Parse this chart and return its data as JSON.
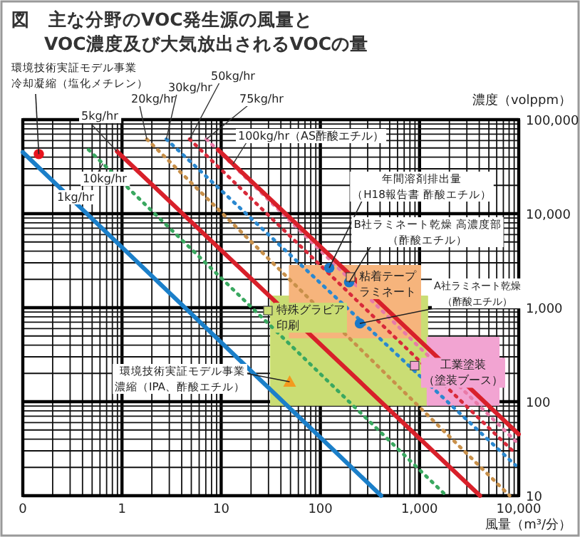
{
  "chart_data": {
    "type": "line",
    "title": "図　主な分野のVOC発生源の風量と\nVOC濃度及び大気放出されるVOCの量",
    "xlabel": "風量（m³/分）",
    "ylabel": "濃度（volppm）",
    "log": "xy",
    "grid": true,
    "xlim": [
      0.1,
      10000
    ],
    "ylim": [
      10,
      100000
    ],
    "xticks": [
      {
        "value": 0.1,
        "label": "0"
      },
      {
        "value": 1,
        "label": "1"
      },
      {
        "value": 10,
        "label": "10"
      },
      {
        "value": 100,
        "label": "100"
      },
      {
        "value": 1000,
        "label": "1,000"
      },
      {
        "value": 10000,
        "label": "10,000"
      }
    ],
    "yticks": [
      {
        "value": 10,
        "label": "10"
      },
      {
        "value": 100,
        "label": "100"
      },
      {
        "value": 1000,
        "label": "1,000"
      },
      {
        "value": 10000,
        "label": "10,000"
      },
      {
        "value": 100000,
        "label": "100,000"
      }
    ],
    "series": [
      {
        "type": "line",
        "name": "特殊グラビア印刷",
        "color": "#cadd74",
        "x": [
          31.6,
          1200
        ],
        "values": [
          null,
          null
        ],
        "lower": [
          92,
          92
        ],
        "upper": [
          1320,
          1320
        ]
      },
      {
        "type": "line",
        "name": "粘着テープラミネート",
        "color": "#f6b47c",
        "x": [
          49,
          1020
        ],
        "values": [
          null,
          null
        ],
        "lower": [
          480,
          480
        ],
        "upper": [
          2800,
          2800
        ]
      },
      {
        "type": "line",
        "name": "工業塗装（塗装ブース）",
        "color": "#f2a4d2",
        "x": [
          1200,
          6300
        ],
        "values": [
          null,
          null
        ],
        "lower": [
          92,
          92
        ],
        "upper": [
          480,
          480
        ]
      },
      {
        "type": "line",
        "name": "1kg/hr",
        "color": "#1b7fc9",
        "line_style": "solid",
        "x": [
          0.1,
          410
        ],
        "values": [
          45000,
          10
        ]
      },
      {
        "type": "line",
        "name": "10kg/hr",
        "color": "#3aa860",
        "line_style": "dotted",
        "x": [
          0.46,
          1860
        ],
        "values": [
          47900,
          10
        ]
      },
      {
        "type": "line",
        "name": "5kg/hr",
        "color": "#d8202a",
        "line_style": "solid",
        "x": [
          0.89,
          4070
        ],
        "values": [
          46000,
          10
        ]
      },
      {
        "type": "line",
        "name": "20kg/hr",
        "color": "#c8904a",
        "line_style": "dotted",
        "x": [
          1.78,
          8100
        ],
        "values": [
          62000,
          10
        ]
      },
      {
        "type": "line",
        "name": "30kg/hr",
        "color": "#2a88d0",
        "line_style": "dotted",
        "x": [
          2.8,
          9300
        ],
        "values": [
          62000,
          21
        ]
      },
      {
        "type": "line",
        "name": "50kg/hr",
        "color": "#d82a3a",
        "line_style": "dotted",
        "x": [
          4.8,
          9300
        ],
        "values": [
          62000,
          28
        ]
      },
      {
        "type": "line",
        "name": "75kg/hr",
        "color": "#e87aa8",
        "line_style": "dotted",
        "x": [
          7.1,
          9300
        ],
        "values": [
          62000,
          38
        ]
      },
      {
        "type": "line",
        "name": "100kg/hr（AS酢酸エチル）",
        "color": "#d8202a",
        "line_style": "solid",
        "x": [
          9.3,
          10000
        ],
        "values": [
          47900,
          45
        ]
      },
      {
        "type": "scatter",
        "marker": "circle",
        "color": "#e8141e",
        "x": [
          0.145
        ],
        "values": [
          43000
        ]
      },
      {
        "type": "scatter",
        "marker": "circle",
        "color": "#1b78c8",
        "x": [
          123,
          195,
          250
        ],
        "values": [
          2650,
          1860,
          680
        ]
      },
      {
        "type": "scatter",
        "marker": "triangle",
        "color": "#f39a1e",
        "x": [
          49
        ],
        "values": [
          163
        ]
      }
    ],
    "annotations": [
      {
        "text": "環境技術実証モデル事業冷却凝縮（塩化メチレン）",
        "x": 0.145,
        "y": 43000
      },
      {
        "text": "年間溶剤排出量（H18報告書  酢酸エチル）",
        "x": 123,
        "y": 2650
      },
      {
        "text": "B社ラミネート乾燥  高濃度部（酢酸エチル）",
        "x": 195,
        "y": 1860
      },
      {
        "text": "A社ラミネート乾燥（酢酸エチル）",
        "x": 250,
        "y": 680
      },
      {
        "text": "環境技術実証モデル事業濃縮（IPA、酢酸エチル）",
        "x": 49,
        "y": 163
      }
    ]
  }
}
